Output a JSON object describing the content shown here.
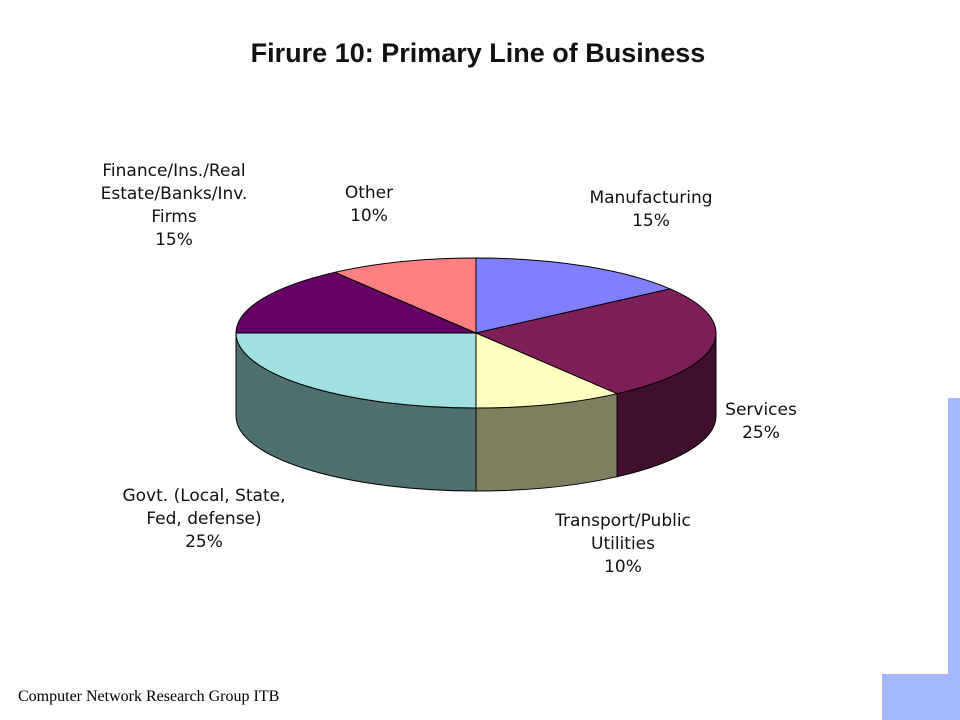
{
  "footer": {
    "text": "Computer Network Research Group ITB"
  },
  "colors": {
    "decoration": "#a6b8ff"
  },
  "chart_data": {
    "type": "pie",
    "title": "Firure 10:  Primary Line of Business",
    "three_d": true,
    "slices": [
      {
        "label_lines": [
          "Manufacturing"
        ],
        "value": 15,
        "value_label": "15%",
        "color": "#8080ff",
        "side_color": "#4d4d99"
      },
      {
        "label_lines": [
          "Services"
        ],
        "value": 25,
        "value_label": "25%",
        "color": "#7f1f5a",
        "side_color": "#3f0f2d"
      },
      {
        "label_lines": [
          "Transport/Public",
          "Utilities"
        ],
        "value": 10,
        "value_label": "10%",
        "color": "#ffffc0",
        "side_color": "#7f7f60"
      },
      {
        "label_lines": [
          "Govt. (Local, State,",
          "Fed, defense)"
        ],
        "value": 25,
        "value_label": "25%",
        "color": "#a0e0e0",
        "side_color": "#507070"
      },
      {
        "label_lines": [
          "Finance/Ins./Real",
          "Estate/Banks/Inv.",
          "Firms"
        ],
        "value": 15,
        "value_label": "15%",
        "color": "#660066",
        "side_color": "#330033"
      },
      {
        "label_lines": [
          "Other"
        ],
        "value": 10,
        "value_label": "10%",
        "color": "#ff8080",
        "side_color": "#7f4040"
      }
    ]
  }
}
